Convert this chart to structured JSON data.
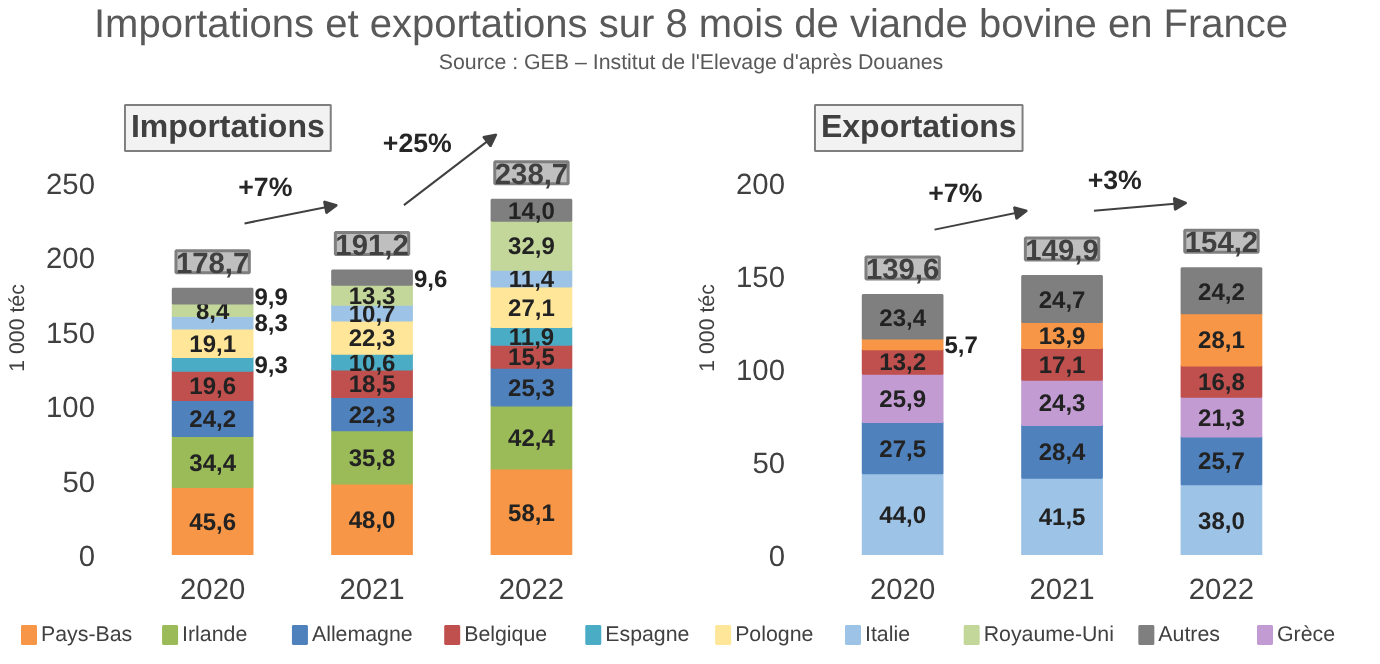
{
  "chart_data": [
    {
      "type": "bar",
      "title": "Importations et exportations sur 8 mois de viande bovine en France",
      "subtitle": "Source : GEB – Institut de l'Elevage d'après Douanes",
      "stacked": true,
      "legend": "bottom",
      "grid": false,
      "ylabel": "1 000 téc",
      "categories": [
        "2020",
        "2021",
        "2022"
      ],
      "ylim": [
        0,
        250
      ],
      "yticks": [
        0,
        50,
        100,
        150,
        200,
        250
      ],
      "annotations": [
        "Importations",
        "+7%",
        "+25%"
      ],
      "totals": [
        "178,7",
        "191,2",
        "238,7"
      ],
      "series": [
        {
          "name": "Pays-Bas",
          "color": "#f79646",
          "values": [
            45.6,
            48.0,
            58.1
          ],
          "value_labels": [
            "45,6",
            "48,0",
            "58,1"
          ]
        },
        {
          "name": "Irlande",
          "color": "#9bbb59",
          "values": [
            34.4,
            35.8,
            42.4
          ],
          "value_labels": [
            "34,4",
            "35,8",
            "42,4"
          ]
        },
        {
          "name": "Allemagne",
          "color": "#4f81bd",
          "values": [
            24.2,
            22.3,
            25.3
          ],
          "value_labels": [
            "24,2",
            "22,3",
            "25,3"
          ]
        },
        {
          "name": "Belgique",
          "color": "#c0504d",
          "values": [
            19.6,
            18.5,
            15.5
          ],
          "value_labels": [
            "19,6",
            "18,5",
            "15,5"
          ]
        },
        {
          "name": "Espagne",
          "color": "#4bacc6",
          "values": [
            9.3,
            10.6,
            11.9
          ],
          "value_labels": [
            "9,3",
            "10,6",
            "11,9"
          ]
        },
        {
          "name": "Pologne",
          "color": "#ffe699",
          "values": [
            19.1,
            22.3,
            27.1
          ],
          "value_labels": [
            "19,1",
            "22,3",
            "27,1"
          ]
        },
        {
          "name": "Italie",
          "color": "#9dc3e6",
          "values": [
            8.3,
            10.7,
            11.4
          ],
          "value_labels": [
            "8,3",
            "10,7",
            "11,4"
          ]
        },
        {
          "name": "Royaume-Uni",
          "color": "#c4d79b",
          "values": [
            8.4,
            13.3,
            32.9
          ],
          "value_labels": [
            "8,4",
            "13,3",
            "32,9"
          ]
        },
        {
          "name": "Autres",
          "color": "#7f7f7f",
          "values": [
            9.9,
            9.6,
            14.0
          ],
          "value_labels": [
            "9,9",
            "9,6",
            "14,0"
          ]
        }
      ]
    },
    {
      "type": "bar",
      "stacked": true,
      "legend": "bottom",
      "grid": false,
      "ylabel": "1 000 téc",
      "categories": [
        "2020",
        "2021",
        "2022"
      ],
      "ylim": [
        0,
        200
      ],
      "yticks": [
        0,
        50,
        100,
        150,
        200
      ],
      "annotations": [
        "Exportations",
        "+7%",
        "+3%"
      ],
      "totals": [
        "139,6",
        "149,9",
        "154,2"
      ],
      "series": [
        {
          "name": "Italie",
          "color": "#9dc3e6",
          "values": [
            44.0,
            41.5,
            38.0
          ],
          "value_labels": [
            "44,0",
            "41,5",
            "38,0"
          ]
        },
        {
          "name": "Allemagne",
          "color": "#4f81bd",
          "values": [
            27.5,
            28.4,
            25.7
          ],
          "value_labels": [
            "27,5",
            "28,4",
            "25,7"
          ]
        },
        {
          "name": "Grèce",
          "color": "#c39bd3",
          "values": [
            25.9,
            24.3,
            21.3
          ],
          "value_labels": [
            "25,9",
            "24,3",
            "21,3"
          ]
        },
        {
          "name": "Belgique",
          "color": "#c0504d",
          "values": [
            13.2,
            17.1,
            16.8
          ],
          "value_labels": [
            "13,2",
            "17,1",
            "16,8"
          ]
        },
        {
          "name": "Pays-Bas",
          "color": "#f79646",
          "values": [
            5.7,
            13.9,
            28.1
          ],
          "value_labels": [
            "5,7",
            "13,9",
            "28,1"
          ]
        },
        {
          "name": "Autres",
          "color": "#7f7f7f",
          "values": [
            23.4,
            24.7,
            24.2
          ],
          "value_labels": [
            "23,4",
            "24,7",
            "24,2"
          ]
        }
      ]
    }
  ]
}
